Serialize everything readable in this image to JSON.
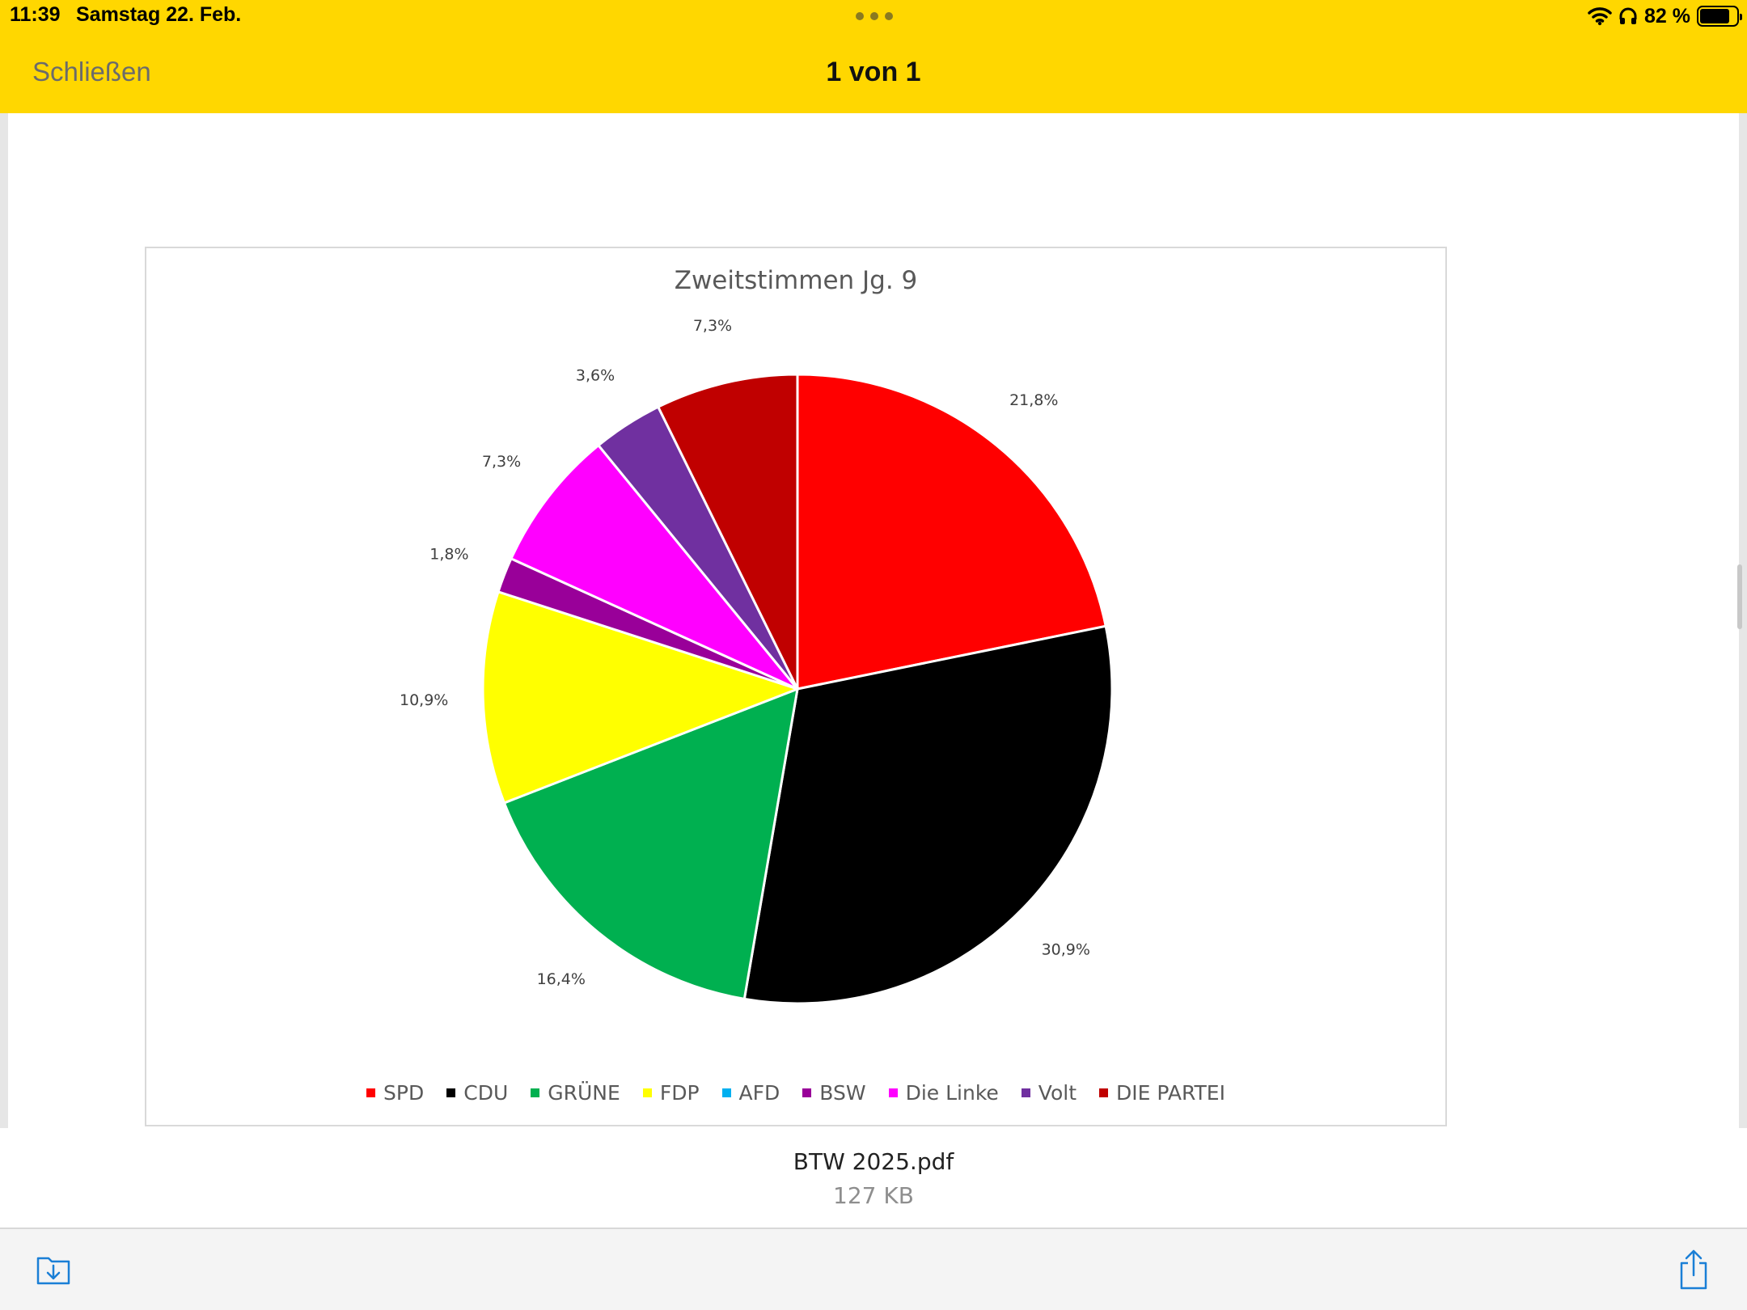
{
  "status_bar": {
    "time": "11:39",
    "date": "Samstag 22. Feb.",
    "battery": "82 %",
    "battery_level": 0.82,
    "icons": [
      "wifi-icon",
      "headphones-icon",
      "battery-icon"
    ]
  },
  "nav": {
    "close_label": "Schließen",
    "page_counter": "1 von 1"
  },
  "file": {
    "name": "BTW 2025.pdf",
    "size": "127 KB"
  },
  "toolbar": {
    "icons": [
      "save-to-files-icon",
      "share-icon"
    ],
    "accent_color": "#1a7fd6"
  },
  "chart_data": {
    "type": "pie",
    "title": "Zweitstimmen Jg. 9",
    "categories": [
      "SPD",
      "CDU",
      "GRÜNE",
      "FDP",
      "AFD",
      "BSW",
      "Die Linke",
      "Volt",
      "DIE PARTEI"
    ],
    "values": [
      21.8,
      30.9,
      16.4,
      10.9,
      0,
      1.8,
      7.3,
      3.6,
      7.3
    ],
    "labels": [
      "21,8%",
      "30,9%",
      "16,4%",
      "10,9%",
      "",
      "1,8%",
      "7,3%",
      "3,6%",
      "7,3%"
    ],
    "colors": [
      "#FF0000",
      "#000000",
      "#00B050",
      "#FFFF00",
      "#00B0F0",
      "#990099",
      "#FF00FF",
      "#7030A0",
      "#C00000"
    ],
    "start_angle_deg": 0,
    "direction": "clockwise",
    "legend_position": "bottom"
  }
}
